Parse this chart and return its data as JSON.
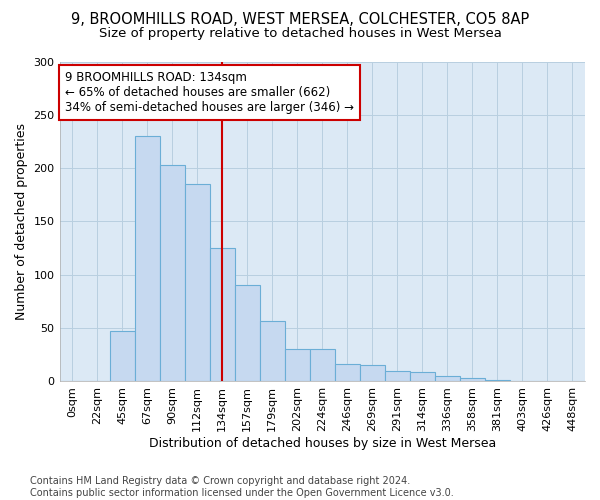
{
  "title_line1": "9, BROOMHILLS ROAD, WEST MERSEA, COLCHESTER, CO5 8AP",
  "title_line2": "Size of property relative to detached houses in West Mersea",
  "xlabel": "Distribution of detached houses by size in West Mersea",
  "ylabel": "Number of detached properties",
  "bar_labels": [
    "0sqm",
    "22sqm",
    "45sqm",
    "67sqm",
    "90sqm",
    "112sqm",
    "134sqm",
    "157sqm",
    "179sqm",
    "202sqm",
    "224sqm",
    "246sqm",
    "269sqm",
    "291sqm",
    "314sqm",
    "336sqm",
    "358sqm",
    "381sqm",
    "403sqm",
    "426sqm",
    "448sqm"
  ],
  "bar_values": [
    0,
    0,
    47,
    230,
    203,
    185,
    125,
    90,
    57,
    30,
    30,
    16,
    15,
    10,
    9,
    5,
    3,
    1,
    0,
    0,
    0
  ],
  "bar_color": "#c6d9f0",
  "bar_edge_color": "#6baed6",
  "vline_x_index": 6,
  "vline_color": "#cc0000",
  "annotation_text": "9 BROOMHILLS ROAD: 134sqm\n← 65% of detached houses are smaller (662)\n34% of semi-detached houses are larger (346) →",
  "annotation_box_color": "white",
  "annotation_box_edge": "#cc0000",
  "ylim": [
    0,
    300
  ],
  "yticks": [
    0,
    50,
    100,
    150,
    200,
    250,
    300
  ],
  "footer_text": "Contains HM Land Registry data © Crown copyright and database right 2024.\nContains public sector information licensed under the Open Government Licence v3.0.",
  "bg_color": "#ffffff",
  "plot_bg_color": "#dce9f5",
  "grid_color": "#b8cfe0",
  "title_fontsize": 10.5,
  "subtitle_fontsize": 9.5,
  "axis_label_fontsize": 9,
  "tick_fontsize": 8,
  "footer_fontsize": 7
}
